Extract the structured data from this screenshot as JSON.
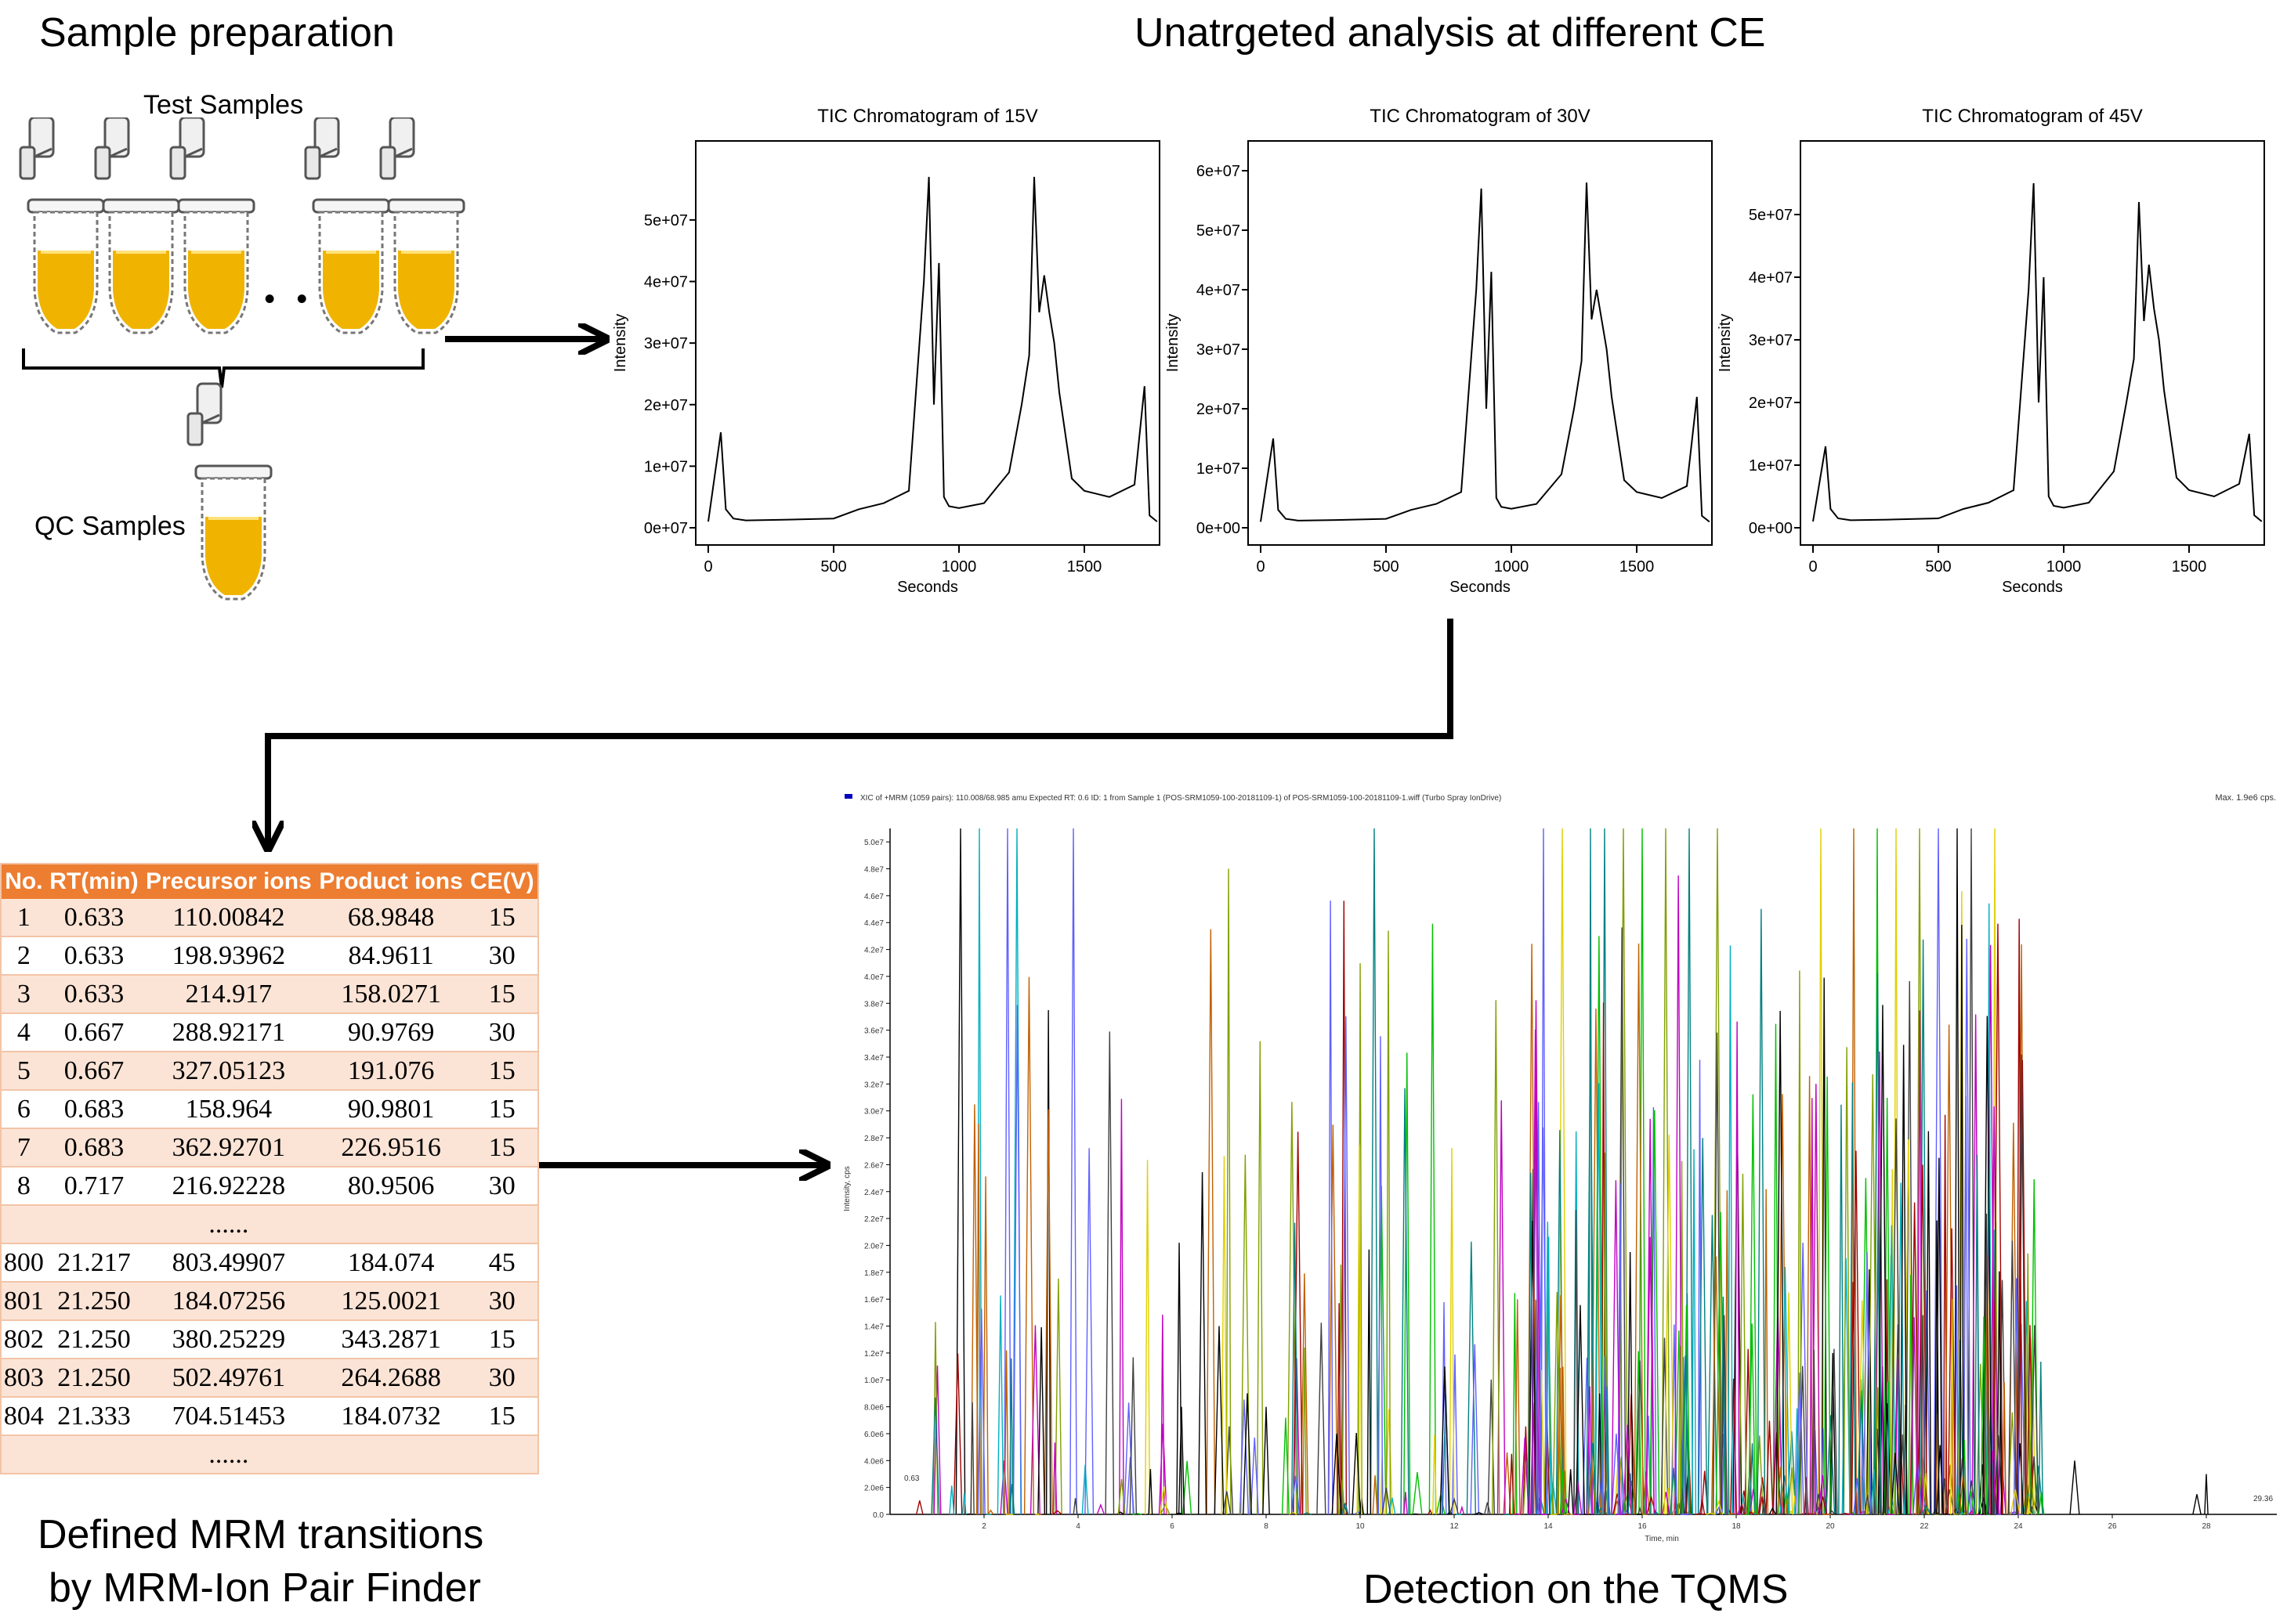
{
  "sections": {
    "sample_prep_title": "Sample preparation",
    "untargeted_title": "Unatrgeted analysis at different CE",
    "mrm_title_line1": "Defined MRM transitions",
    "mrm_title_line2": "by MRM-Ion Pair Finder",
    "tqms_title": "Detection on the TQMS"
  },
  "sample_prep": {
    "test_label": "Test Samples",
    "qc_label": "QC Samples",
    "ellipsis": "• • •"
  },
  "colors": {
    "header_orange": "#ed7d31",
    "row_light_orange": "#fbe4d6",
    "tube_liquid": "#f0b400"
  },
  "mrm_table": {
    "headers": [
      "No.",
      "RT(min)",
      "Precursor ions",
      "Product ions",
      "CE(V)"
    ],
    "rows": [
      [
        "1",
        "0.633",
        "110.00842",
        "68.9848",
        "15"
      ],
      [
        "2",
        "0.633",
        "198.93962",
        "84.9611",
        "30"
      ],
      [
        "3",
        "0.633",
        "214.917",
        "158.0271",
        "15"
      ],
      [
        "4",
        "0.667",
        "288.92171",
        "90.9769",
        "30"
      ],
      [
        "5",
        "0.667",
        "327.05123",
        "191.076",
        "15"
      ],
      [
        "6",
        "0.683",
        "158.964",
        "90.9801",
        "15"
      ],
      [
        "7",
        "0.683",
        "362.92701",
        "226.9516",
        "15"
      ],
      [
        "8",
        "0.717",
        "216.92228",
        "80.9506",
        "30"
      ],
      [
        "",
        "",
        "......",
        "",
        ""
      ],
      [
        "800",
        "21.217",
        "803.49907",
        "184.074",
        "45"
      ],
      [
        "801",
        "21.250",
        "184.07256",
        "125.0021",
        "30"
      ],
      [
        "802",
        "21.250",
        "380.25229",
        "343.2871",
        "15"
      ],
      [
        "803",
        "21.250",
        "502.49761",
        "264.2688",
        "30"
      ],
      [
        "804",
        "21.333",
        "704.51453",
        "184.0732",
        "15"
      ],
      [
        "",
        "",
        "......",
        "",
        ""
      ]
    ]
  },
  "chart_data": [
    {
      "type": "line",
      "title": "TIC Chromatogram of 15V",
      "xlabel": "Seconds",
      "ylabel": "Intensity",
      "xlim": [
        -50,
        1800
      ],
      "ylim": [
        0,
        58000000
      ],
      "x_ticks": [
        "0",
        "500",
        "1000",
        "1500"
      ],
      "y_ticks": [
        "0e+07",
        "1e+07",
        "2e+07",
        "3e+07",
        "4e+07",
        "5e+07"
      ],
      "series": [
        {
          "x": [
            0,
            50,
            70,
            100,
            150,
            300,
            500,
            600,
            700,
            800,
            860,
            880,
            900,
            920,
            940,
            960,
            1000,
            1100,
            1200,
            1250,
            1280,
            1300,
            1320,
            1340,
            1360,
            1380,
            1400,
            1450,
            1500,
            1600,
            1700,
            1740,
            1760,
            1790
          ],
          "y": [
            1000000,
            15500000,
            3000000,
            1500000,
            1200000,
            1300000,
            1500000,
            3000000,
            4000000,
            6000000,
            40000000,
            57000000,
            20000000,
            43000000,
            5000000,
            3500000,
            3200000,
            4000000,
            9000000,
            20000000,
            28000000,
            57000000,
            35000000,
            41000000,
            35000000,
            30000000,
            22000000,
            8000000,
            6000000,
            5000000,
            7000000,
            23000000,
            2000000,
            1000000
          ]
        }
      ]
    },
    {
      "type": "line",
      "title": "TIC Chromatogram of 30V",
      "xlabel": "Seconds",
      "ylabel": "Intensity",
      "xlim": [
        -50,
        1800
      ],
      "ylim": [
        0,
        60000000
      ],
      "x_ticks": [
        "0",
        "500",
        "1000",
        "1500"
      ],
      "y_ticks": [
        "0e+00",
        "1e+07",
        "2e+07",
        "3e+07",
        "4e+07",
        "5e+07",
        "6e+07"
      ],
      "series": [
        {
          "x": [
            0,
            50,
            70,
            100,
            150,
            300,
            500,
            600,
            700,
            800,
            860,
            880,
            900,
            920,
            940,
            960,
            1000,
            1100,
            1200,
            1250,
            1280,
            1300,
            1320,
            1340,
            1360,
            1380,
            1400,
            1450,
            1500,
            1600,
            1700,
            1740,
            1760,
            1790
          ],
          "y": [
            1000000,
            15000000,
            3000000,
            1500000,
            1200000,
            1300000,
            1500000,
            3000000,
            4000000,
            6000000,
            40000000,
            57000000,
            20000000,
            43000000,
            5000000,
            3500000,
            3200000,
            4000000,
            9000000,
            20000000,
            28000000,
            58000000,
            35000000,
            40000000,
            35000000,
            30000000,
            22000000,
            8000000,
            6000000,
            5000000,
            7000000,
            22000000,
            2000000,
            1000000
          ]
        }
      ]
    },
    {
      "type": "line",
      "title": "TIC Chromatogram of 45V",
      "xlabel": "Seconds",
      "ylabel": "Intensity",
      "xlim": [
        -50,
        1800
      ],
      "ylim": [
        0,
        57000000
      ],
      "x_ticks": [
        "0",
        "500",
        "1000",
        "1500"
      ],
      "y_ticks": [
        "0e+00",
        "1e+07",
        "2e+07",
        "3e+07",
        "4e+07",
        "5e+07"
      ],
      "series": [
        {
          "x": [
            0,
            50,
            70,
            100,
            150,
            300,
            500,
            600,
            700,
            800,
            860,
            880,
            900,
            920,
            940,
            960,
            1000,
            1100,
            1200,
            1250,
            1280,
            1300,
            1320,
            1340,
            1360,
            1380,
            1400,
            1450,
            1500,
            1600,
            1700,
            1740,
            1760,
            1790
          ],
          "y": [
            1000000,
            13000000,
            3000000,
            1500000,
            1200000,
            1300000,
            1500000,
            3000000,
            4000000,
            6000000,
            38000000,
            55000000,
            20000000,
            40000000,
            5000000,
            3500000,
            3200000,
            4000000,
            9000000,
            20000000,
            27000000,
            52000000,
            33000000,
            42000000,
            35000000,
            30000000,
            22000000,
            8000000,
            6000000,
            5000000,
            7000000,
            15000000,
            2000000,
            1000000
          ]
        }
      ]
    },
    {
      "type": "line",
      "title": "XIC of +MRM (1059 pairs): 110.008/68.985 amu Expected RT: 0.6 ID: 1 from Sample 1 (POS-SRM1059-100-20181109-1) of POS-SRM1059-100-20181109-1.wiff (Turbo Spray IonDrive)",
      "max_label": "Max. 1.9e6 cps.",
      "xlabel": "Time, min",
      "ylabel": "Intensity, cps",
      "xlim": [
        0,
        29.5
      ],
      "ylim": [
        0,
        51000000
      ],
      "x_ticks": [
        "2",
        "4",
        "6",
        "8",
        "10",
        "12",
        "14",
        "16",
        "18",
        "20",
        "22",
        "24",
        "26",
        "28"
      ],
      "y_ticks": [
        "0.0",
        "2.0e6",
        "4.0e6",
        "6.0e6",
        "8.0e6",
        "1.0e7",
        "1.2e7",
        "1.4e7",
        "1.6e7",
        "1.8e7",
        "2.0e7",
        "2.2e7",
        "2.4e7",
        "2.6e7",
        "2.8e7",
        "3.0e7",
        "3.2e7",
        "3.4e7",
        "3.6e7",
        "3.8e7",
        "4.0e7",
        "4.2e7",
        "4.4e7",
        "4.6e7",
        "4.8e7",
        "5.0e7"
      ],
      "annotations": [
        "0.63",
        "29.36"
      ]
    }
  ]
}
